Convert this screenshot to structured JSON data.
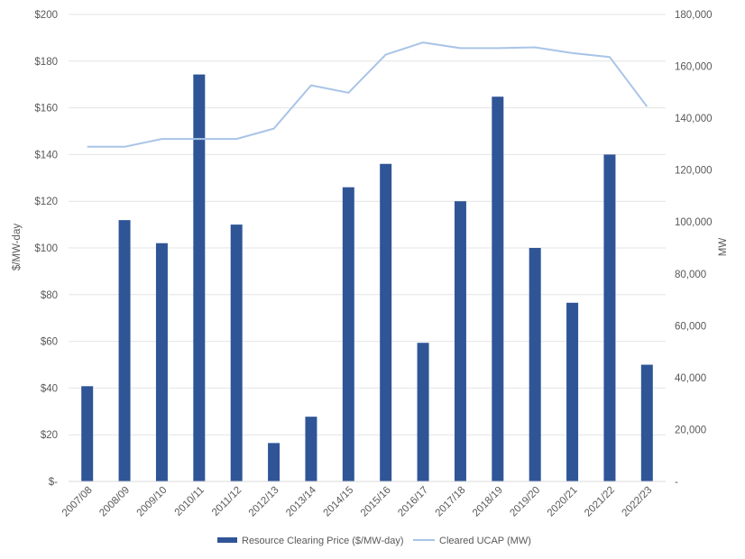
{
  "chart_data": {
    "type": "bar",
    "categories": [
      "2007/08",
      "2008/09",
      "2009/10",
      "2010/11",
      "2011/12",
      "2012/13",
      "2013/14",
      "2014/15",
      "2015/16",
      "2016/17",
      "2017/18",
      "2018/19",
      "2019/20",
      "2020/21",
      "2021/22",
      "2022/23"
    ],
    "series": [
      {
        "name": "Resource Clearing Price ($/MW-day)",
        "type": "bar",
        "axis": "left",
        "color": "#2F5597",
        "values": [
          40.8,
          111.92,
          102.04,
          174.29,
          110.0,
          16.46,
          27.73,
          125.99,
          136.0,
          59.37,
          120.0,
          164.77,
          100.0,
          76.53,
          140.0,
          50.0
        ]
      },
      {
        "name": "Cleared UCAP (MW)",
        "type": "line",
        "axis": "right",
        "color": "#A9C4E8",
        "values": [
          129000,
          129000,
          132000,
          132000,
          132000,
          136000,
          152700,
          149800,
          164500,
          169200,
          167000,
          167000,
          167300,
          165100,
          163600,
          144500
        ]
      }
    ],
    "ylabel": "$/MW-day",
    "ylabel_right": "MW",
    "ylim": [
      0,
      200
    ],
    "ylim_right": [
      0,
      180000
    ],
    "y_ticks": [
      "$-",
      "$20",
      "$40",
      "$60",
      "$80",
      "$100",
      "$120",
      "$140",
      "$160",
      "$180",
      "$200"
    ],
    "y_right_ticks": [
      "-",
      "20,000",
      "40,000",
      "60,000",
      "80,000",
      "100,000",
      "120,000",
      "140,000",
      "160,000",
      "180,000"
    ],
    "grid": true,
    "legend_position": "bottom"
  }
}
